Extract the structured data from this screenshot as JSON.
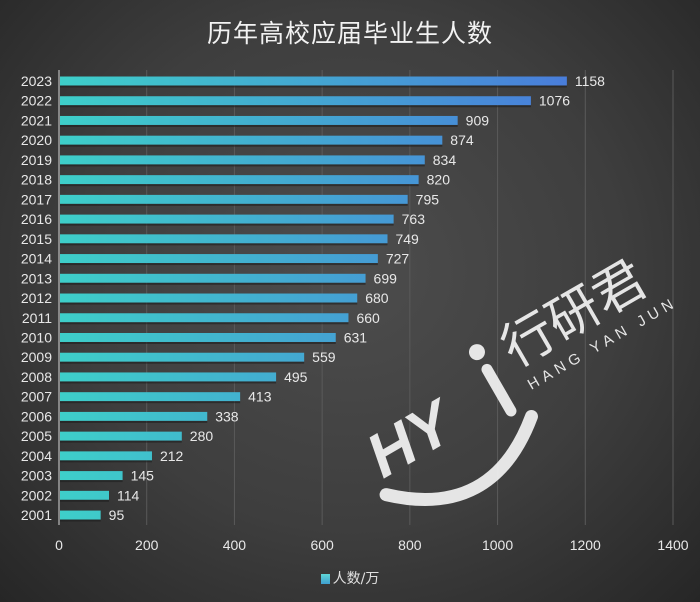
{
  "title": "历年高校应届毕业生人数",
  "legend": {
    "label": "人数/万",
    "placement": "bottom"
  },
  "colors": {
    "bar_start": "#3ecfc9",
    "bar_end": "#4a78dc",
    "background": "#3e3e3e",
    "text": "#e8e8e8",
    "grid": "#5a5a5a"
  },
  "watermark": {
    "logo": "HYJ",
    "name": "行研君",
    "pinyin": "HANG YAN JUN"
  },
  "chart_data": {
    "type": "bar",
    "orientation": "horizontal",
    "title": "历年高校应届毕业生人数",
    "categories": [
      "2023",
      "2022",
      "2021",
      "2020",
      "2019",
      "2018",
      "2017",
      "2016",
      "2015",
      "2014",
      "2013",
      "2012",
      "2011",
      "2010",
      "2009",
      "2008",
      "2007",
      "2006",
      "2005",
      "2004",
      "2003",
      "2002",
      "2001"
    ],
    "series": [
      {
        "name": "人数/万",
        "values": [
          1158,
          1076,
          909,
          874,
          834,
          820,
          795,
          763,
          749,
          727,
          699,
          680,
          660,
          631,
          559,
          495,
          413,
          338,
          280,
          212,
          145,
          114,
          95
        ]
      }
    ],
    "xlim": [
      0,
      1400
    ],
    "xticks": [
      "0",
      "200",
      "400",
      "600",
      "800",
      "1000",
      "1200",
      "1400"
    ],
    "grid": "vertical",
    "data_labels": true
  }
}
